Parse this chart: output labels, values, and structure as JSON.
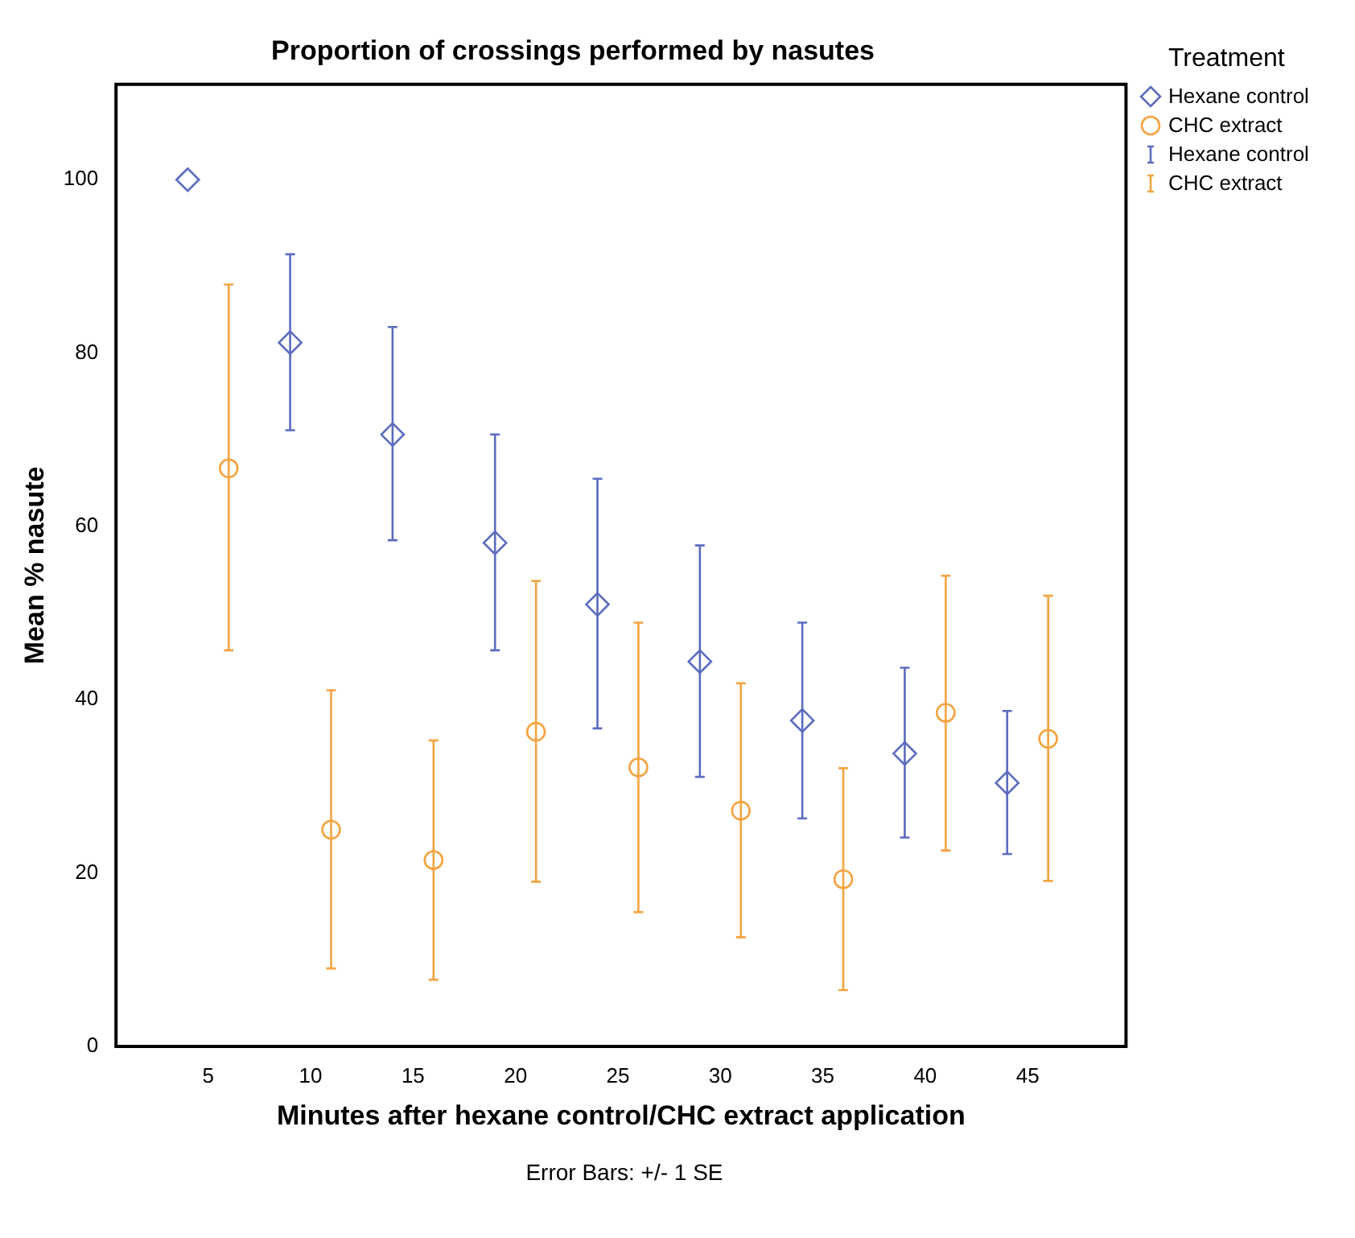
{
  "chart_data": {
    "type": "scatter",
    "title": "Proportion of crossings performed by nasutes",
    "xlabel": "Minutes after hexane control/CHC extract application",
    "ylabel": "Mean % nasute",
    "legend_title": "Treatment",
    "annotations": [
      "Error Bars: +/- 1 SE"
    ],
    "series": [
      {
        "name": "Hexane control",
        "color": "#5b6bbf",
        "marker": "diamond",
        "x": [
          4,
          9,
          14,
          19,
          24,
          29,
          34,
          39,
          44
        ],
        "values": [
          100,
          81.2,
          70.6,
          58.1,
          51.0,
          44.4,
          37.6,
          33.8,
          30.4
        ],
        "errors": [
          null,
          [
            71.1,
            91.4
          ],
          [
            58.4,
            83.0
          ],
          [
            45.7,
            70.6
          ],
          [
            36.7,
            65.5
          ],
          [
            31.1,
            57.8
          ],
          [
            26.3,
            48.9
          ],
          [
            24.1,
            43.7
          ],
          [
            22.2,
            38.7
          ]
        ]
      },
      {
        "name": "CHC extract",
        "color": "#f5a340",
        "marker": "circle",
        "x": [
          6,
          11,
          16,
          21,
          26,
          31,
          36,
          41,
          46
        ],
        "values": [
          66.7,
          25.0,
          21.5,
          36.3,
          32.2,
          27.2,
          19.3,
          38.5,
          35.5
        ],
        "errors": [
          [
            45.7,
            87.9
          ],
          [
            9.0,
            41.1
          ],
          [
            7.7,
            35.3
          ],
          [
            19.0,
            53.7
          ],
          [
            15.5,
            48.9
          ],
          [
            12.6,
            41.9
          ],
          [
            6.5,
            32.1
          ],
          [
            22.6,
            54.3
          ],
          [
            19.1,
            52.0
          ]
        ]
      }
    ],
    "xlim": [
      0.5,
      49.8
    ],
    "xticks": [
      5,
      10,
      15,
      20,
      25,
      30,
      35,
      40,
      45
    ],
    "ylim": [
      0,
      111
    ],
    "yticks": [
      0,
      20,
      40,
      60,
      80,
      100
    ],
    "grid": false,
    "legend": "right"
  }
}
